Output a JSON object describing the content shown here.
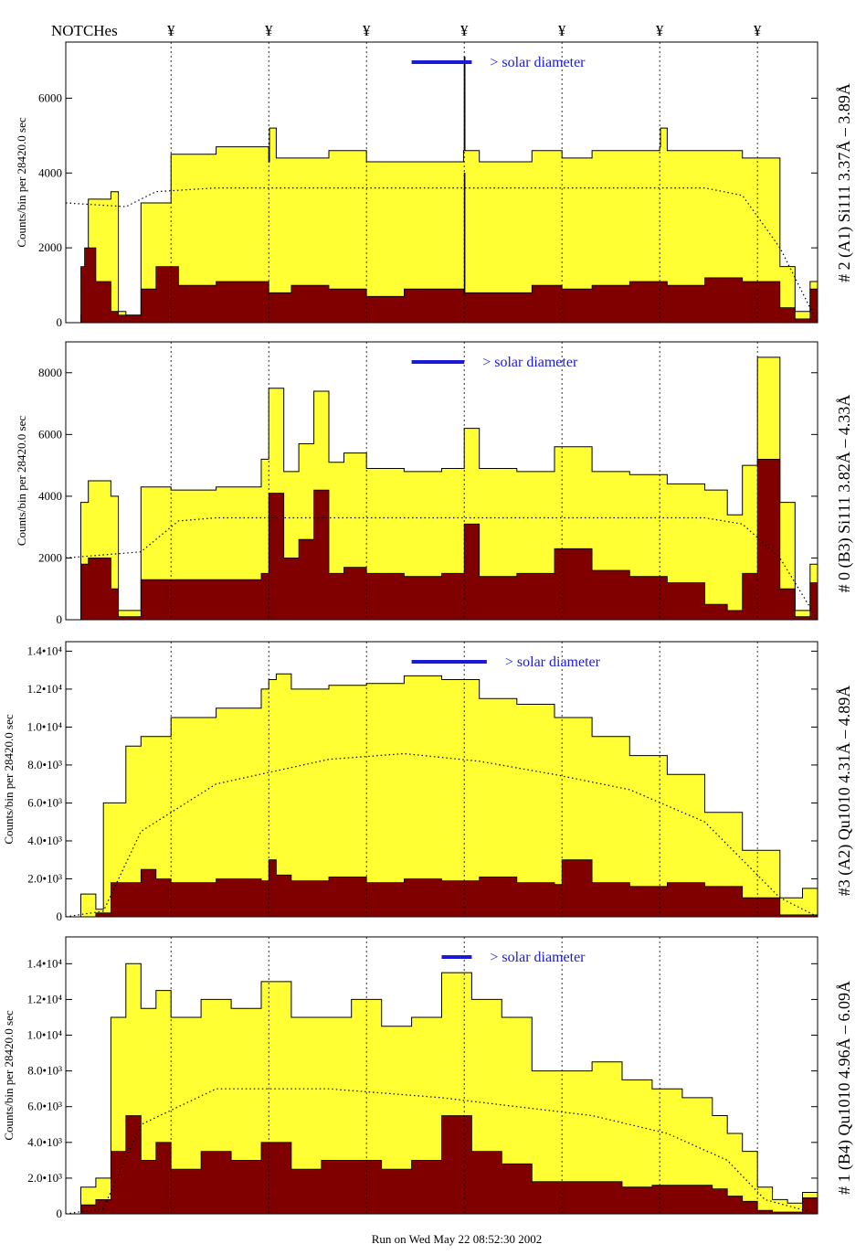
{
  "figure": {
    "notches_label": "NOTCHes",
    "notch_symbol": "¥",
    "footer": "Run on Wed May 22 08:52:30 2002",
    "solar_label": "> solar diameter",
    "colors": {
      "total_fill": "#ffff33",
      "low_fill": "#800000",
      "solar_bar": "#1a1ad6",
      "outline": "#000000"
    }
  },
  "chart_data": [
    {
      "type": "area",
      "panel_label": "# 2 (A1) Si111  3.37Å – 3.89Å",
      "ylabel": "Counts/bin per  28420.0 sec",
      "ylim": [
        0,
        7500
      ],
      "yticks": [
        0,
        2000,
        4000,
        6000
      ],
      "ytick_labels": [
        "0",
        "2000",
        "4000",
        "6000"
      ],
      "notches": [
        0.14,
        0.27,
        0.4,
        0.53,
        0.66,
        0.79,
        0.92
      ],
      "solar_bar": [
        0.46,
        0.54
      ],
      "series": [
        {
          "x": [
            0,
            0.02,
            0.03,
            0.06,
            0.07,
            0.08,
            0.1,
            0.14,
            0.2,
            0.27,
            0.271,
            0.28,
            0.35,
            0.4,
            0.45,
            0.529,
            0.53,
            0.531,
            0.55,
            0.62,
            0.66,
            0.7,
            0.79,
            0.791,
            0.8,
            0.9,
            0.95,
            0.97,
            0.99,
            1.0
          ],
          "values": [
            0,
            200,
            3300,
            3500,
            300,
            200,
            3200,
            4500,
            4700,
            4300,
            5200,
            4400,
            4600,
            4300,
            4300,
            4600,
            7100,
            4600,
            4300,
            4600,
            4400,
            4600,
            4700,
            5200,
            4600,
            4400,
            1500,
            300,
            1100,
            0
          ]
        },
        {
          "x": [
            0,
            0.02,
            0.025,
            0.04,
            0.06,
            0.07,
            0.1,
            0.12,
            0.15,
            0.2,
            0.27,
            0.3,
            0.35,
            0.4,
            0.45,
            0.529,
            0.53,
            0.531,
            0.55,
            0.62,
            0.66,
            0.7,
            0.75,
            0.8,
            0.85,
            0.9,
            0.95,
            0.97,
            0.99,
            1.0
          ],
          "values": [
            0,
            1500,
            2000,
            1100,
            300,
            200,
            900,
            1500,
            1000,
            1100,
            800,
            1000,
            900,
            700,
            900,
            800,
            4000,
            800,
            800,
            1000,
            900,
            1000,
            1100,
            1000,
            1200,
            1100,
            400,
            100,
            900,
            0
          ]
        },
        {
          "x": [
            0,
            0.08,
            0.12,
            0.2,
            0.85,
            0.9,
            0.95,
            1.0
          ],
          "values": [
            3200,
            3100,
            3500,
            3600,
            3600,
            3400,
            2000,
            0
          ]
        }
      ]
    },
    {
      "type": "area",
      "panel_label": "# 0 (B3) Si111  3.82Å – 4.33Å",
      "ylabel": "Counts/bin per  28420.0 sec",
      "ylim": [
        0,
        9000
      ],
      "yticks": [
        0,
        2000,
        4000,
        6000,
        8000
      ],
      "ytick_labels": [
        "0",
        "2000",
        "4000",
        "6000",
        "8000"
      ],
      "notches": [
        0.14,
        0.27,
        0.4,
        0.53,
        0.66,
        0.79,
        0.92
      ],
      "solar_bar": [
        0.46,
        0.53
      ],
      "series": [
        {
          "x": [
            0,
            0.02,
            0.03,
            0.06,
            0.07,
            0.1,
            0.14,
            0.2,
            0.26,
            0.27,
            0.29,
            0.31,
            0.33,
            0.35,
            0.37,
            0.4,
            0.45,
            0.5,
            0.53,
            0.55,
            0.6,
            0.65,
            0.7,
            0.75,
            0.8,
            0.85,
            0.88,
            0.9,
            0.92,
            0.95,
            0.97,
            0.99,
            1.0
          ],
          "values": [
            0,
            3800,
            4500,
            4000,
            300,
            4300,
            4200,
            4300,
            5200,
            7500,
            4800,
            5700,
            7400,
            5100,
            5400,
            4900,
            4800,
            4900,
            6200,
            4900,
            4800,
            5600,
            4800,
            4700,
            4400,
            4200,
            3400,
            5000,
            8500,
            3800,
            300,
            1800,
            0
          ]
        },
        {
          "x": [
            0,
            0.02,
            0.03,
            0.06,
            0.07,
            0.1,
            0.14,
            0.2,
            0.26,
            0.27,
            0.29,
            0.31,
            0.33,
            0.35,
            0.37,
            0.4,
            0.45,
            0.5,
            0.53,
            0.55,
            0.6,
            0.65,
            0.7,
            0.75,
            0.8,
            0.85,
            0.88,
            0.9,
            0.92,
            0.95,
            0.97,
            0.99,
            1.0
          ],
          "values": [
            0,
            1800,
            2000,
            1000,
            100,
            1300,
            1300,
            1300,
            1500,
            4100,
            2000,
            2600,
            4200,
            1500,
            1700,
            1500,
            1400,
            1500,
            3100,
            1400,
            1500,
            2300,
            1600,
            1400,
            1200,
            500,
            300,
            1500,
            5200,
            1000,
            100,
            1200,
            0
          ]
        },
        {
          "x": [
            0,
            0.1,
            0.15,
            0.2,
            0.85,
            0.9,
            0.95,
            1.0
          ],
          "values": [
            2000,
            2200,
            3200,
            3300,
            3300,
            3100,
            2000,
            0
          ]
        }
      ]
    },
    {
      "type": "area",
      "panel_label": "#3 (A2) Qu1010  4.31Å – 4.89Å",
      "ylabel": "Counts/bin per  28420.0 sec",
      "ylim": [
        0,
        14500
      ],
      "yticks": [
        0,
        2000,
        4000,
        6000,
        8000,
        10000,
        12000,
        14000
      ],
      "ytick_labels": [
        "0",
        "2.0•10³",
        "4.0•10³",
        "6.0•10³",
        "8.0•10³",
        "1.0•10⁴",
        "1.2•10⁴",
        "1.4•10⁴"
      ],
      "notches": [
        0.14,
        0.27,
        0.4,
        0.53,
        0.66,
        0.79,
        0.92
      ],
      "solar_bar": [
        0.46,
        0.56
      ],
      "series": [
        {
          "x": [
            0,
            0.02,
            0.04,
            0.05,
            0.08,
            0.1,
            0.14,
            0.2,
            0.26,
            0.27,
            0.28,
            0.3,
            0.35,
            0.4,
            0.45,
            0.5,
            0.55,
            0.6,
            0.65,
            0.7,
            0.75,
            0.8,
            0.85,
            0.9,
            0.95,
            0.98,
            1.0
          ],
          "values": [
            0,
            1200,
            400,
            6000,
            9000,
            9500,
            10500,
            11000,
            12000,
            12500,
            12800,
            12000,
            12200,
            12300,
            12700,
            12500,
            11500,
            11200,
            10500,
            9500,
            8500,
            7500,
            5500,
            3500,
            1000,
            1500,
            0
          ]
        },
        {
          "x": [
            0,
            0.04,
            0.06,
            0.1,
            0.12,
            0.14,
            0.2,
            0.26,
            0.27,
            0.28,
            0.3,
            0.35,
            0.4,
            0.45,
            0.5,
            0.55,
            0.6,
            0.65,
            0.66,
            0.7,
            0.75,
            0.8,
            0.85,
            0.9,
            0.95,
            1.0
          ],
          "values": [
            0,
            200,
            1800,
            2500,
            2000,
            1800,
            2000,
            1900,
            3000,
            2200,
            1900,
            2100,
            1800,
            2000,
            1900,
            2100,
            1800,
            1700,
            3000,
            1800,
            1600,
            1800,
            1600,
            1000,
            100,
            0
          ]
        },
        {
          "x": [
            0,
            0.05,
            0.1,
            0.2,
            0.35,
            0.45,
            0.55,
            0.65,
            0.75,
            0.85,
            0.9,
            0.95,
            1.0
          ],
          "values": [
            0,
            300,
            4500,
            7000,
            8300,
            8600,
            8200,
            7500,
            6700,
            5000,
            3000,
            1000,
            0
          ]
        }
      ]
    },
    {
      "type": "area",
      "panel_label": "# 1 (B4) Qu1010 4.96Å – 6.09Å",
      "ylabel": "Counts/bin per  28420.0 sec",
      "ylim": [
        0,
        15500
      ],
      "yticks": [
        0,
        2000,
        4000,
        6000,
        8000,
        10000,
        12000,
        14000
      ],
      "ytick_labels": [
        "0",
        "2.0•10³",
        "4.0•10³",
        "6.0•10³",
        "8.0•10³",
        "1.0•10⁴",
        "1.2•10⁴",
        "1.4•10⁴"
      ],
      "notches": [
        0.14,
        0.27,
        0.4,
        0.53,
        0.66,
        0.79,
        0.92
      ],
      "solar_bar": [
        0.5,
        0.54
      ],
      "series": [
        {
          "x": [
            0,
            0.02,
            0.04,
            0.06,
            0.08,
            0.1,
            0.12,
            0.14,
            0.18,
            0.22,
            0.26,
            0.3,
            0.34,
            0.38,
            0.42,
            0.46,
            0.5,
            0.54,
            0.58,
            0.62,
            0.66,
            0.7,
            0.74,
            0.78,
            0.82,
            0.86,
            0.88,
            0.9,
            0.92,
            0.94,
            0.96,
            0.98,
            1.0
          ],
          "values": [
            0,
            1500,
            2000,
            11000,
            14000,
            11500,
            12500,
            11000,
            12000,
            11500,
            13000,
            11000,
            11000,
            12000,
            10500,
            11000,
            13500,
            12000,
            11000,
            8000,
            8000,
            8500,
            7500,
            7000,
            6500,
            5500,
            4500,
            3500,
            1500,
            800,
            600,
            1200,
            0
          ]
        },
        {
          "x": [
            0,
            0.02,
            0.04,
            0.06,
            0.08,
            0.1,
            0.12,
            0.14,
            0.18,
            0.22,
            0.26,
            0.3,
            0.34,
            0.38,
            0.42,
            0.46,
            0.5,
            0.54,
            0.58,
            0.62,
            0.66,
            0.7,
            0.74,
            0.78,
            0.82,
            0.86,
            0.88,
            0.9,
            0.92,
            0.94,
            0.96,
            0.98,
            1.0
          ],
          "values": [
            0,
            500,
            800,
            3500,
            5500,
            3000,
            4000,
            2500,
            3500,
            3000,
            4000,
            2500,
            3000,
            3000,
            2500,
            3000,
            5500,
            3500,
            2800,
            1800,
            1800,
            1800,
            1500,
            1600,
            1600,
            1400,
            1000,
            700,
            200,
            100,
            100,
            900,
            0
          ]
        },
        {
          "x": [
            0,
            0.05,
            0.1,
            0.2,
            0.35,
            0.5,
            0.6,
            0.7,
            0.8,
            0.88,
            0.93,
            1.0
          ],
          "values": [
            0,
            300,
            5000,
            7000,
            7000,
            6500,
            6000,
            5500,
            4500,
            3000,
            800,
            0
          ]
        }
      ]
    }
  ]
}
